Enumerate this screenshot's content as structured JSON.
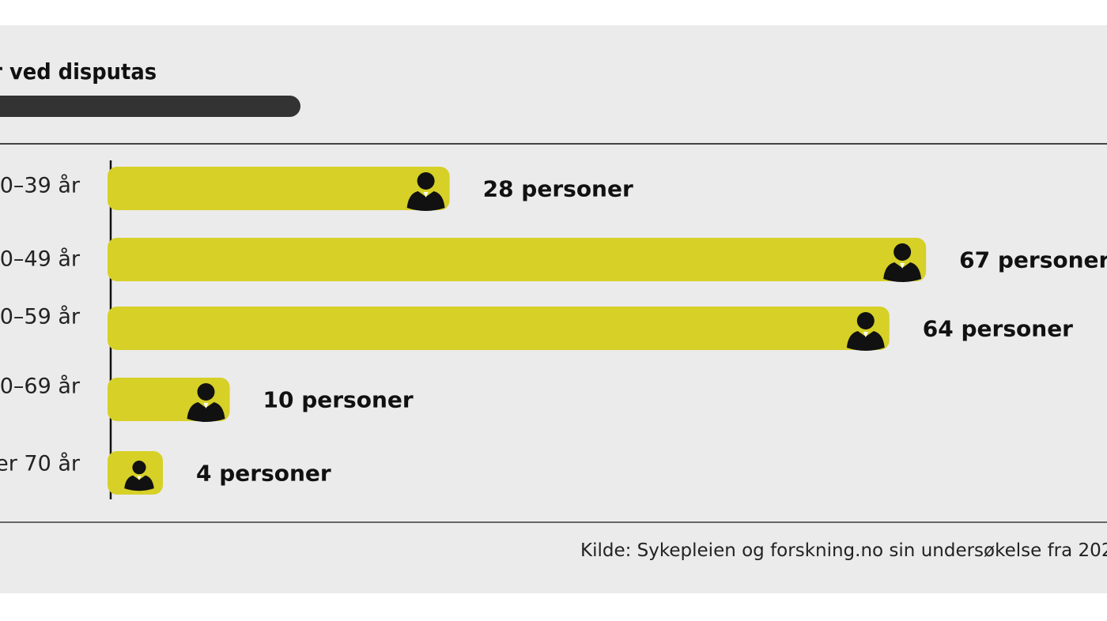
{
  "title": "ler ved disputas",
  "colors": {
    "bar": "#d6d027",
    "text": "#111111",
    "panel": "#ebebeb",
    "axis": "#111111"
  },
  "icon": "person-icon",
  "chart_data": {
    "type": "bar",
    "orientation": "horizontal",
    "categories": [
      "0–39 år",
      "0–49 år",
      "0–59 år",
      "0–69 år",
      "er 70 år"
    ],
    "values": [
      28,
      67,
      64,
      10,
      4
    ],
    "data_labels": [
      "28 personer",
      "67 personer",
      "64 personer",
      "10 personer",
      "4 personer"
    ],
    "grid": false,
    "xlim": [
      0,
      70
    ]
  },
  "source": "Kilde: Sykepleien og forskning.no sin undersøkelse fra 202"
}
